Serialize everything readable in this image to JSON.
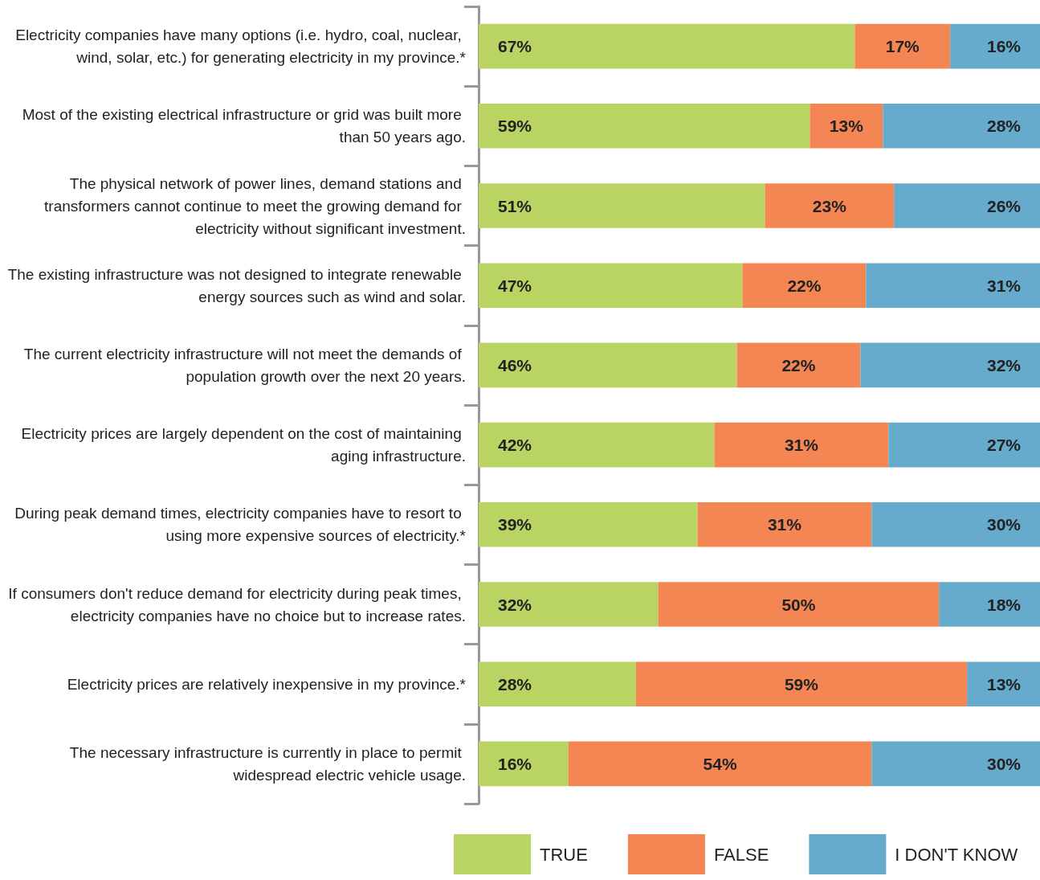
{
  "chart_data": {
    "type": "bar",
    "orientation": "horizontal",
    "stacked": true,
    "legend": "bottom",
    "xlim": [
      0,
      100
    ],
    "categories": [
      "Electricity companies have many options (i.e. hydro, coal, nuclear, wind, solar, etc.) for generating electricity in my province.*",
      "Most of the existing electrical infrastructure or grid was built more than 50 years ago.",
      "The physical network of power lines, demand stations and transformers cannot continue to meet the growing demand for electricity without significant investment.",
      "The existing infrastructure was not designed to integrate renewable energy sources such as wind and solar.",
      "The current electricity infrastructure will not meet the demands of population growth over the next 20 years.",
      "Electricity prices are largely dependent on the cost of maintaining aging infrastructure.",
      "During peak demand times, electricity companies have to resort to using more expensive sources of electricity.*",
      "If consumers don't reduce demand for electricity during peak times, electricity companies have no choice but to increase rates.",
      "Electricity prices are relatively inexpensive in my province.*",
      "The necessary infrastructure is currently in place to permit widespread electric vehicle usage."
    ],
    "series": [
      {
        "name": "TRUE",
        "color": "#b9d463",
        "values": [
          67,
          59,
          51,
          47,
          46,
          42,
          39,
          32,
          28,
          16
        ],
        "value_labels": [
          "67%",
          "59%",
          "51%",
          "47%",
          "46%",
          "42%",
          "39%",
          "32%",
          "28%",
          "16%"
        ]
      },
      {
        "name": "FALSE",
        "color": "#f48654",
        "values": [
          17,
          13,
          23,
          22,
          22,
          31,
          31,
          50,
          59,
          54
        ],
        "value_labels": [
          "17%",
          "13%",
          "23%",
          "22%",
          "22%",
          "31%",
          "31%",
          "50%",
          "59%",
          "54%"
        ]
      },
      {
        "name": "I DON'T KNOW",
        "color": "#66abcc",
        "values": [
          16,
          28,
          26,
          31,
          32,
          27,
          30,
          18,
          13,
          30
        ],
        "value_labels": [
          "16%",
          "28%",
          "26%",
          "31%",
          "32%",
          "27%",
          "30%",
          "18%",
          "13%",
          "30%"
        ]
      }
    ]
  }
}
